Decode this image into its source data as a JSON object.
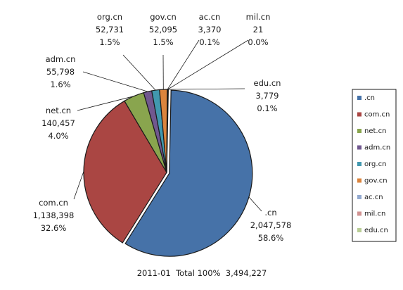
{
  "chart_data": {
    "type": "pie",
    "title": "",
    "footer": {
      "period": "2011-01",
      "total_label": "Total 100%",
      "total_value": "3,494,227"
    },
    "slices": [
      {
        "name": ".cn",
        "value": 2047578,
        "value_label": "2,047,578",
        "percent_label": "58.6%",
        "color": "#4672a8"
      },
      {
        "name": "com.cn",
        "value": 1138398,
        "value_label": "1,138,398",
        "percent_label": "32.6%",
        "color": "#aa4643"
      },
      {
        "name": "net.cn",
        "value": 140457,
        "value_label": "140,457",
        "percent_label": "4.0%",
        "color": "#89a54e"
      },
      {
        "name": "adm.cn",
        "value": 55798,
        "value_label": "55,798",
        "percent_label": "1.6%",
        "color": "#71588f"
      },
      {
        "name": "org.cn",
        "value": 52731,
        "value_label": "52,731",
        "percent_label": "1.5%",
        "color": "#4198af"
      },
      {
        "name": "gov.cn",
        "value": 52095,
        "value_label": "52,095",
        "percent_label": "1.5%",
        "color": "#db843d"
      },
      {
        "name": "ac.cn",
        "value": 3370,
        "value_label": "3,370",
        "percent_label": "0.1%",
        "color": "#93a9cf"
      },
      {
        "name": "mil.cn",
        "value": 21,
        "value_label": "21",
        "percent_label": "0.0%",
        "color": "#d19392"
      },
      {
        "name": "edu.cn",
        "value": 3779,
        "value_label": "3,779",
        "percent_label": "0.1%",
        "color": "#b9cd96"
      }
    ],
    "legend_position": "right"
  }
}
